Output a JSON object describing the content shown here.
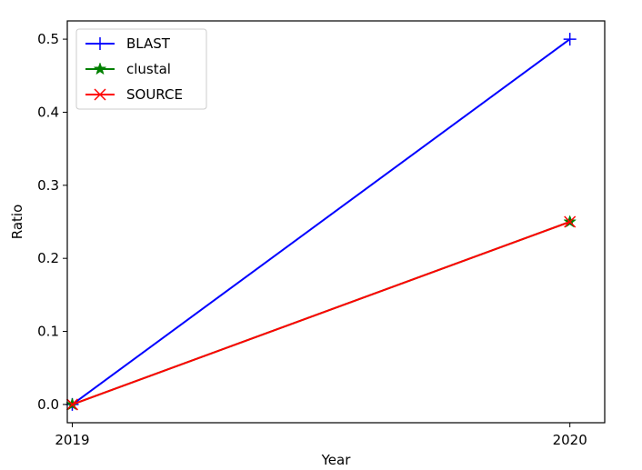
{
  "chart_data": {
    "type": "line",
    "title": "",
    "xlabel": "Year",
    "ylabel": "Ratio",
    "x": [
      2019,
      2020
    ],
    "x_tick_labels": [
      "2019",
      "2020"
    ],
    "xlim": [
      2018.99,
      2020.07
    ],
    "ylim": [
      -0.025,
      0.525
    ],
    "y_ticks": [
      0.0,
      0.1,
      0.2,
      0.3,
      0.4,
      0.5
    ],
    "y_tick_labels": [
      "0.0",
      "0.1",
      "0.2",
      "0.3",
      "0.4",
      "0.5"
    ],
    "grid": false,
    "legend_position": "top-left",
    "series": [
      {
        "name": "BLAST",
        "values": [
          0.0,
          0.5
        ],
        "color": "#0000ff",
        "marker": "plus"
      },
      {
        "name": "clustal",
        "values": [
          0.0,
          0.25
        ],
        "color": "#008000",
        "marker": "star"
      },
      {
        "name": "SOURCE",
        "values": [
          0.0,
          0.25
        ],
        "color": "#ff0000",
        "marker": "x"
      }
    ]
  }
}
